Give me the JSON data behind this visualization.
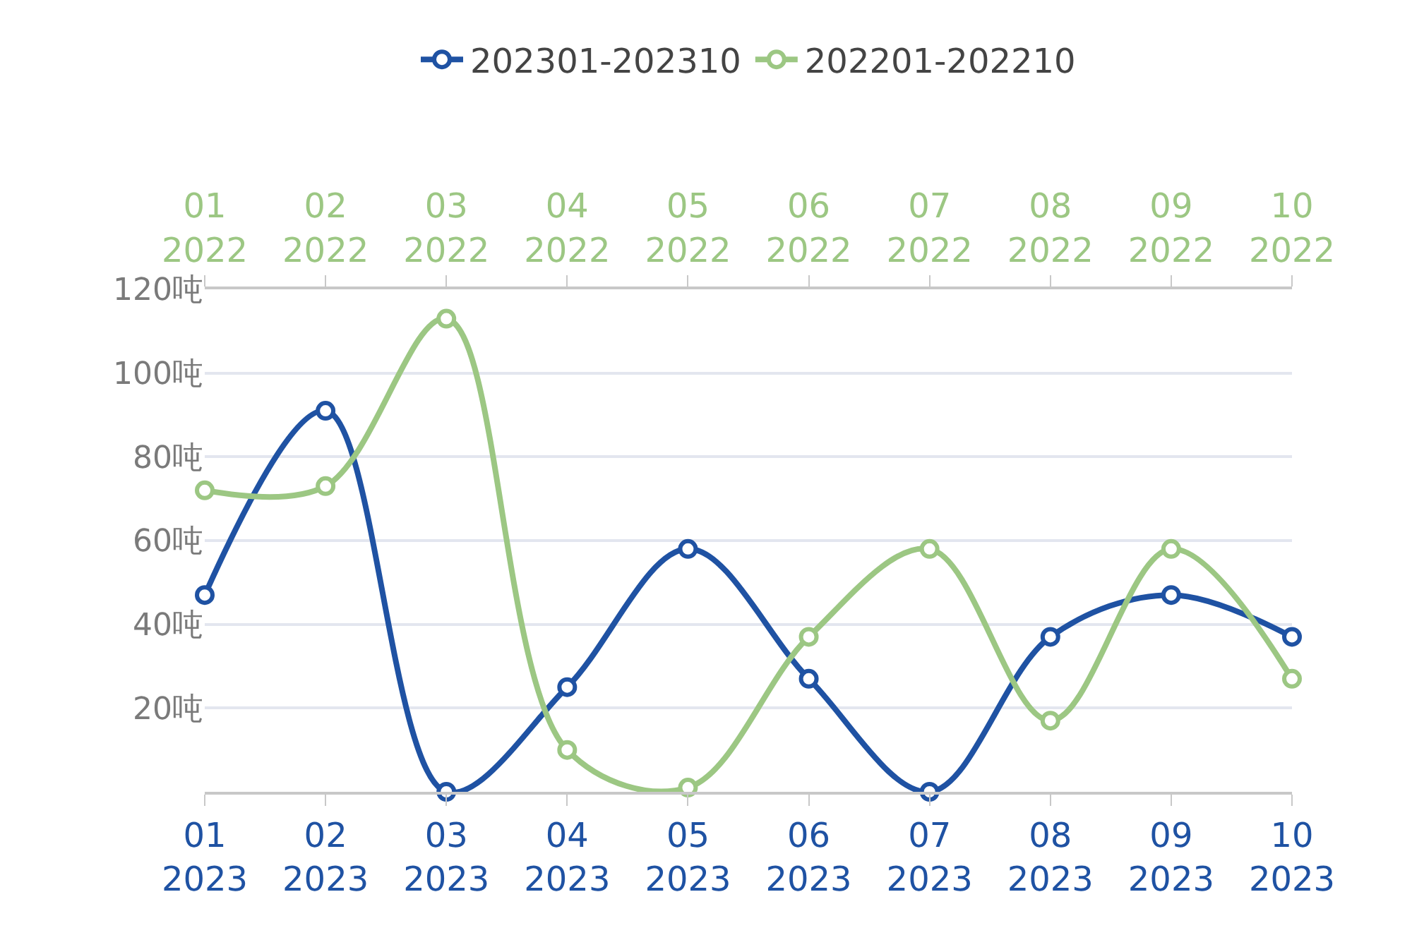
{
  "chart_data": {
    "type": "line",
    "categories": [
      "01\n2023",
      "02\n2023",
      "03\n2023",
      "04\n2023",
      "05\n2023",
      "06\n2023",
      "07\n2023",
      "08\n2023",
      "09\n2023",
      "10\n2023"
    ],
    "series": [
      {
        "name": "202301-202310",
        "color": "#1f52a3",
        "values": [
          47,
          91,
          0,
          25,
          58,
          27,
          0,
          37,
          47,
          37
        ]
      },
      {
        "name": "202201-202210",
        "color": "#9cc783",
        "values": [
          72,
          73,
          113,
          10,
          1,
          37,
          58,
          17,
          58,
          27
        ]
      }
    ],
    "annotations": [
      "01\n2022",
      "02\n2022",
      "03\n2022",
      "04\n2022",
      "05\n2022",
      "06\n2022",
      "07\n2022",
      "08\n2022",
      "09\n2022",
      "10\n2022"
    ],
    "ylim": [
      0,
      120
    ],
    "yticks": [
      {
        "value": 0,
        "label": null
      },
      {
        "value": 20,
        "label": "20吨"
      },
      {
        "value": 40,
        "label": "40吨"
      },
      {
        "value": 60,
        "label": "60吨"
      },
      {
        "value": 80,
        "label": "80吨"
      },
      {
        "value": 100,
        "label": "100吨"
      },
      {
        "value": 120,
        "label": "120吨"
      }
    ],
    "grid": "y",
    "legend": "top",
    "marker": "circle",
    "line_style": "solid"
  }
}
